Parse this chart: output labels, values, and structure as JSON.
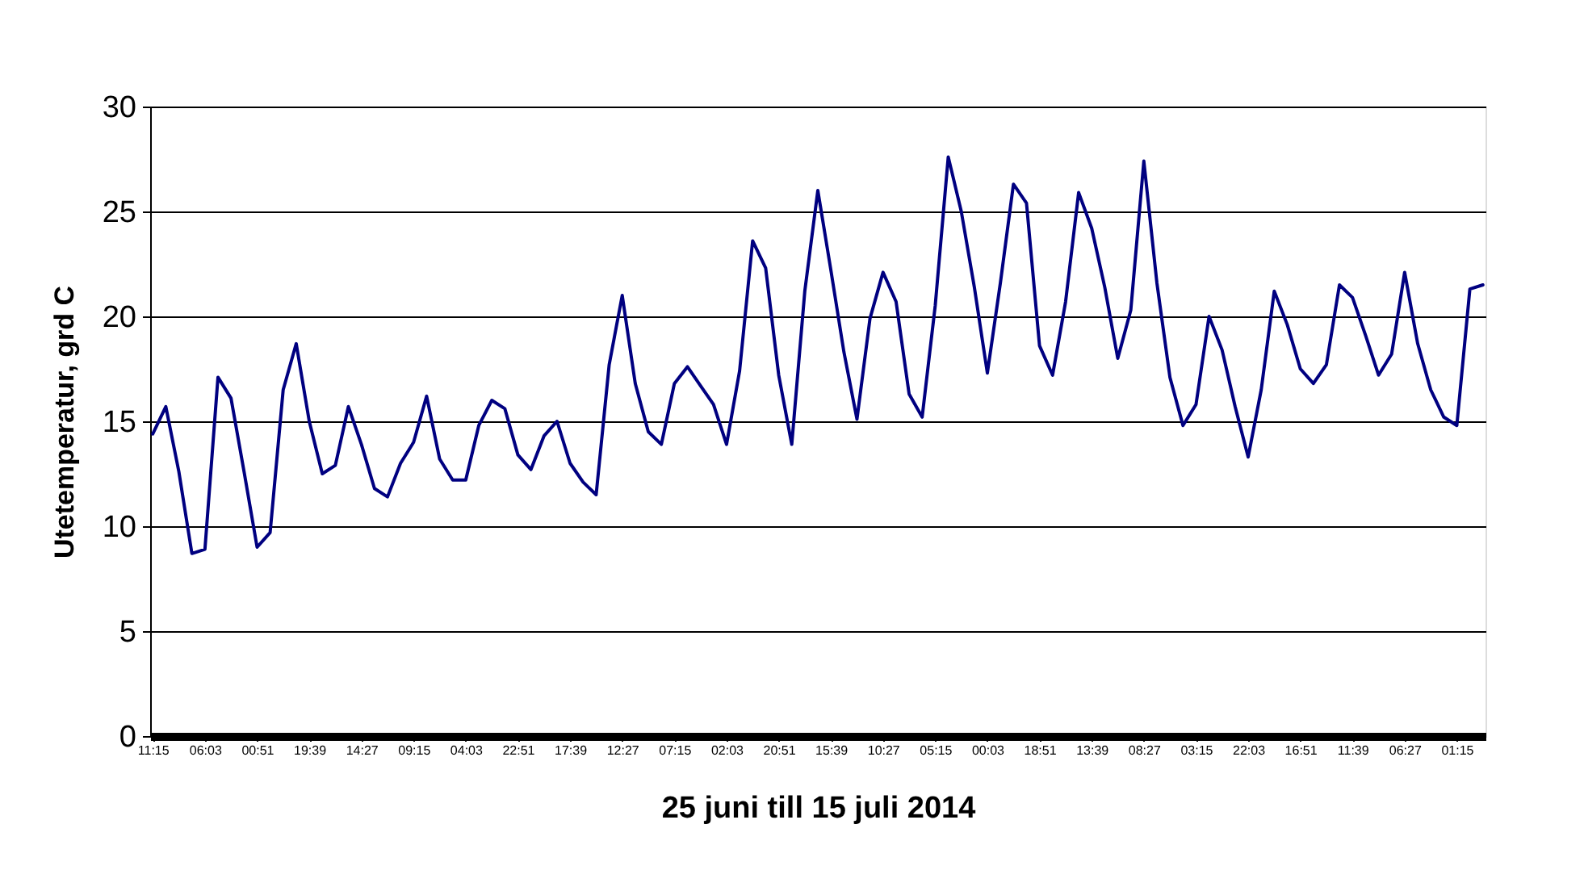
{
  "chart_data": {
    "type": "line",
    "xlabel": "25 juni till 15 juli 2014",
    "ylabel": "Utetemperatur, grd C",
    "categories": [
      "11:15",
      null,
      null,
      null,
      "06:03",
      null,
      null,
      null,
      "00:51",
      null,
      null,
      null,
      "19:39",
      null,
      null,
      null,
      "14:27",
      null,
      null,
      null,
      "09:15",
      null,
      null,
      null,
      "04:03",
      null,
      null,
      null,
      "22:51",
      null,
      null,
      null,
      "17:39",
      null,
      null,
      null,
      "12:27",
      null,
      null,
      null,
      "07:15",
      null,
      null,
      null,
      "02:03",
      null,
      null,
      null,
      "20:51",
      null,
      null,
      null,
      "15:39",
      null,
      null,
      null,
      "10:27",
      null,
      null,
      null,
      "05:15",
      null,
      null,
      null,
      "00:03",
      null,
      null,
      null,
      "18:51",
      null,
      null,
      null,
      "13:39",
      null,
      null,
      null,
      "08:27",
      null,
      null,
      null,
      "03:15",
      null,
      null,
      null,
      "22:03",
      null,
      null,
      null,
      "16:51",
      null,
      null,
      null,
      "11:39",
      null,
      null,
      null,
      "06:27",
      null,
      null,
      null,
      "01:15",
      null,
      null
    ],
    "ylim": [
      0,
      30
    ],
    "yticks": [
      0,
      5,
      10,
      15,
      20,
      25,
      30
    ],
    "grid": "y",
    "legend": false,
    "marker": "none",
    "line_style": "solid",
    "series": [
      {
        "color": "#000080",
        "values": [
          14.4,
          15.7,
          12.6,
          8.7,
          8.9,
          17.1,
          16.1,
          12.6,
          9.0,
          9.7,
          16.5,
          18.7,
          15.0,
          12.5,
          12.9,
          15.7,
          13.9,
          11.8,
          11.4,
          13,
          14,
          16.2,
          13.2,
          12.2,
          12.2,
          14.8,
          16,
          15.6,
          13.4,
          12.7,
          14.3,
          15,
          13,
          12.1,
          11.5,
          17.7,
          21,
          16.8,
          14.5,
          13.9,
          16.8,
          17.6,
          16.7,
          15.8,
          13.9,
          17.4,
          23.6,
          22.3,
          17.2,
          13.9,
          21.2,
          26,
          22.2,
          18.3,
          15.1,
          19.9,
          22.1,
          20.7,
          16.3,
          15.2,
          20.5,
          27.6,
          25,
          21.4,
          17.3,
          21.6,
          26.3,
          25.4,
          18.6,
          17.2,
          20.7,
          25.9,
          24.2,
          21.4,
          18,
          20.3,
          27.4,
          21.6,
          17.1,
          14.8,
          15.8,
          20,
          18.4,
          15.7,
          13.3,
          16.5,
          21.2,
          19.6,
          17.5,
          16.8,
          17.7,
          21.5,
          20.9,
          19.1,
          17.2,
          18.2,
          22.1,
          18.7,
          16.5,
          15.2,
          14.8,
          21.3,
          21.5
        ]
      }
    ]
  }
}
